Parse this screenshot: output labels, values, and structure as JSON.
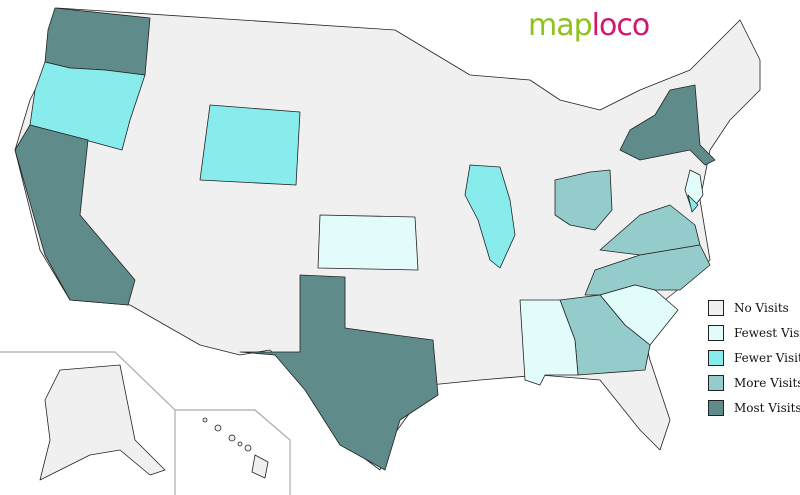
{
  "logo": {
    "part1": "map",
    "part2": "loco"
  },
  "colors": {
    "no": "#f0f0f0",
    "fewest": "#e2fbfb",
    "fewer": "#88ecec",
    "more": "#94cccb",
    "most": "#5f8b8b"
  },
  "legend": [
    {
      "label": "No Visits",
      "level": "no"
    },
    {
      "label": "Fewest Visits",
      "level": "fewest"
    },
    {
      "label": "Fewer Visits",
      "level": "fewer"
    },
    {
      "label": "More Visits",
      "level": "more"
    },
    {
      "label": "Most Visits",
      "level": "most"
    }
  ],
  "states": [
    {
      "name": "Washington",
      "level": "most"
    },
    {
      "name": "Oregon",
      "level": "fewer"
    },
    {
      "name": "California",
      "level": "most"
    },
    {
      "name": "Wyoming",
      "level": "fewer"
    },
    {
      "name": "Kansas",
      "level": "fewest"
    },
    {
      "name": "Texas",
      "level": "most"
    },
    {
      "name": "Illinois",
      "level": "fewer"
    },
    {
      "name": "New York",
      "level": "most"
    },
    {
      "name": "New Jersey",
      "level": "fewest"
    },
    {
      "name": "Delaware",
      "level": "fewer"
    },
    {
      "name": "Ohio",
      "level": "more"
    },
    {
      "name": "Virginia",
      "level": "more"
    },
    {
      "name": "North Carolina",
      "level": "more"
    },
    {
      "name": "South Carolina",
      "level": "fewest"
    },
    {
      "name": "Georgia",
      "level": "more"
    },
    {
      "name": "Alabama",
      "level": "fewest"
    }
  ]
}
